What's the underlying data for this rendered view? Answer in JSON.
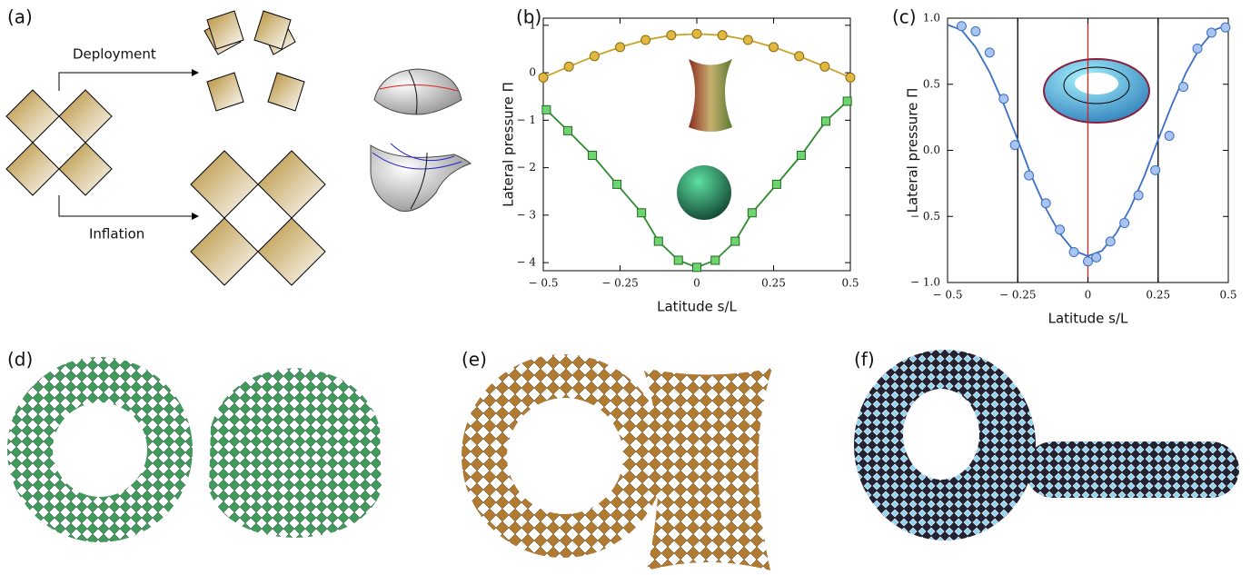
{
  "panel_labels": [
    "(a)",
    "(b)",
    "(c)",
    "(d)",
    "(e)",
    "(f)"
  ],
  "annotations": [
    "Deployment",
    "Inflation"
  ],
  "chart_data": [
    {
      "type": "line",
      "xlabel": "Latitude s/L",
      "ylabel": "Lateral pressure Π",
      "xlim": [
        -0.5,
        0.5
      ],
      "ylim": [
        -4.17,
        1.15
      ],
      "xticks": [
        {
          "value": -0.5,
          "label": "− 0.5"
        },
        {
          "value": -0.25,
          "label": "− 0.25"
        },
        0,
        0.25,
        0.5
      ],
      "yticks": [
        1,
        0,
        {
          "value": -1,
          "label": "− 1"
        },
        {
          "value": -2,
          "label": "− 2"
        },
        {
          "value": -3,
          "label": "− 3"
        },
        {
          "value": -4,
          "label": "− 4"
        }
      ],
      "series": [
        {
          "color": "#c9a227",
          "marker": "circle",
          "mode": "lines+markers",
          "x": [
            -0.5,
            -0.4167,
            -0.3333,
            -0.25,
            -0.1667,
            -0.0833,
            0,
            0.0833,
            0.1667,
            0.25,
            0.3333,
            0.4167,
            0.5
          ],
          "values": [
            -0.1,
            0.13,
            0.35,
            0.54,
            0.69,
            0.79,
            0.82,
            0.79,
            0.69,
            0.54,
            0.35,
            0.13,
            -0.1
          ]
        },
        {
          "color": "#2e8b2e",
          "marker": "square",
          "mode": "lines+markers",
          "x": [
            -0.49,
            -0.42,
            -0.34,
            -0.26,
            -0.18,
            -0.125,
            -0.06,
            0,
            0.06,
            0.125,
            0.18,
            0.26,
            0.34,
            0.42,
            0.49
          ],
          "values": [
            -0.78,
            -1.22,
            -1.74,
            -2.35,
            -2.95,
            -3.55,
            -3.95,
            -4.1,
            -3.95,
            -3.55,
            -2.95,
            -2.35,
            -1.74,
            -1.02,
            -0.6
          ]
        }
      ]
    },
    {
      "type": "line",
      "xlabel": "Latitude s/L",
      "ylabel": "Lateral pressure Π",
      "xlim": [
        -0.5,
        0.5
      ],
      "ylim": [
        -1.0,
        1.0
      ],
      "xticks": [
        {
          "value": -0.5,
          "label": "− 0.5"
        },
        {
          "value": -0.25,
          "label": "− 0.25"
        },
        0,
        0.25,
        0.5
      ],
      "yticks": [
        {
          "value": 1.0,
          "label": "1.0"
        },
        0.5,
        {
          "value": 0.0,
          "label": "0.0"
        },
        {
          "value": -0.5,
          "label": "− 0.5"
        },
        {
          "value": -1.0,
          "label": "− 1.0"
        }
      ],
      "vlines": [
        {
          "value": -0.25,
          "color": "#000000"
        },
        {
          "value": 0,
          "color": "#cc2222"
        },
        {
          "value": 0.25,
          "color": "#000000"
        }
      ],
      "series": [
        {
          "color": "#3a6fc4",
          "mode": "lines",
          "x": [
            -0.5,
            -0.45,
            -0.4,
            -0.35,
            -0.3,
            -0.25,
            -0.2,
            -0.15,
            -0.1,
            -0.05,
            0,
            0.05,
            0.1,
            0.15,
            0.2,
            0.25,
            0.3,
            0.35,
            0.4,
            0.45,
            0.5
          ],
          "values": [
            0.95,
            0.91,
            0.78,
            0.59,
            0.35,
            0.08,
            -0.2,
            -0.44,
            -0.63,
            -0.76,
            -0.8,
            -0.76,
            -0.63,
            -0.44,
            -0.2,
            0.08,
            0.35,
            0.59,
            0.78,
            0.91,
            0.95
          ]
        },
        {
          "color": "#3a6fc4",
          "marker": "circle",
          "mode": "markers",
          "fill": "#a9c4ee",
          "x": [
            -0.45,
            -0.4,
            -0.35,
            -0.3,
            -0.26,
            -0.21,
            -0.15,
            -0.1,
            -0.05,
            0,
            0.03,
            0.08,
            0.13,
            0.18,
            0.24,
            0.29,
            0.34,
            0.39,
            0.44,
            0.49
          ],
          "values": [
            0.94,
            0.9,
            0.74,
            0.39,
            0.04,
            -0.19,
            -0.4,
            -0.6,
            -0.77,
            -0.84,
            -0.81,
            -0.69,
            -0.55,
            -0.34,
            -0.15,
            0.11,
            0.48,
            0.77,
            0.89,
            0.93
          ]
        }
      ]
    }
  ]
}
